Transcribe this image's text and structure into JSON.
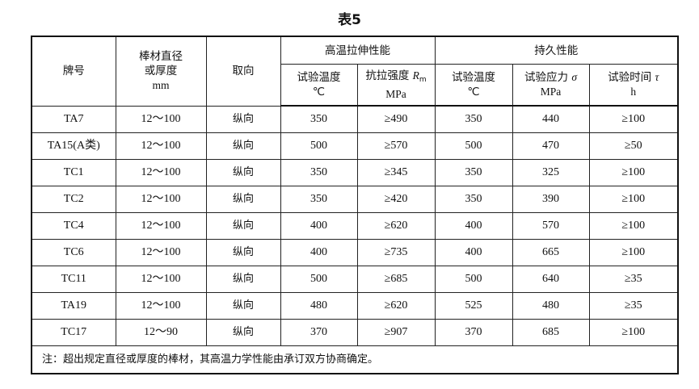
{
  "title": "表5",
  "header": {
    "grade": "牌号",
    "size": [
      "棒材直径",
      "或厚度",
      "mm"
    ],
    "orientation": "取向",
    "group_tensile": "高温拉伸性能",
    "group_creep": "持久性能",
    "tensile_temp": [
      "试验温度",
      "℃"
    ],
    "tensile_strength": [
      "抗拉强度",
      "R",
      "m",
      "MPa"
    ],
    "creep_temp": [
      "试验温度",
      "℃"
    ],
    "creep_stress": [
      "试验应力",
      "σ",
      "MPa"
    ],
    "creep_time": [
      "试验时间",
      "τ",
      "h"
    ]
  },
  "rows": [
    [
      "TA7",
      "12～100",
      "纵向",
      "350",
      "≥490",
      "350",
      "440",
      "≥100"
    ],
    [
      "TA15(A类)",
      "12～100",
      "纵向",
      "500",
      "≥570",
      "500",
      "470",
      "≥50"
    ],
    [
      "TC1",
      "12～100",
      "纵向",
      "350",
      "≥345",
      "350",
      "325",
      "≥100"
    ],
    [
      "TC2",
      "12～100",
      "纵向",
      "350",
      "≥420",
      "350",
      "390",
      "≥100"
    ],
    [
      "TC4",
      "12～100",
      "纵向",
      "400",
      "≥620",
      "400",
      "570",
      "≥100"
    ],
    [
      "TC6",
      "12～100",
      "纵向",
      "400",
      "≥735",
      "400",
      "665",
      "≥100"
    ],
    [
      "TC11",
      "12～100",
      "纵向",
      "500",
      "≥685",
      "500",
      "640",
      "≥35"
    ],
    [
      "TA19",
      "12～100",
      "纵向",
      "480",
      "≥620",
      "525",
      "480",
      "≥35"
    ],
    [
      "TC17",
      "12～90",
      "纵向",
      "370",
      "≥907",
      "370",
      "685",
      "≥100"
    ]
  ],
  "note": "注：超出规定直径或厚度的棒材，其高温力学性能由承订双方协商确定。"
}
